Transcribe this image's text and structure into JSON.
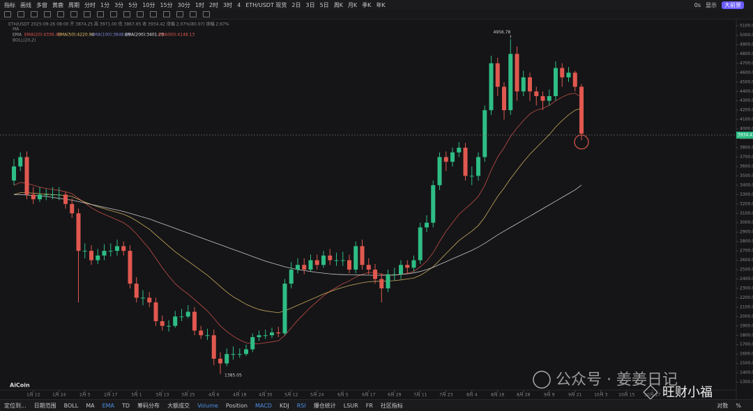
{
  "toolbar": {
    "items": [
      "指标",
      "画线",
      "多窗",
      "黄鹿",
      "周期",
      "分时",
      "1分",
      "3分",
      "5分",
      "10分",
      "15分",
      "30分",
      "1时",
      "2时",
      "3时",
      "4",
      "ETH/USDT 现货",
      "2日",
      "3日",
      "5日",
      "周K",
      "月K",
      "季K",
      "年K"
    ],
    "right": [
      "0s",
      "显示"
    ],
    "badge": "大前景"
  },
  "header": {
    "info": "ETH/USDT  2025-09-26 08:00  开 3874.25  高 3971.00  低 3867.65  收 3934.42  涨幅 2.07%(80.07)  振幅 2.67%",
    "ma": "MA",
    "ema_title": "EMA",
    "ema": [
      {
        "text": "EMA(20):4336.43",
        "color": "#e0584f"
      },
      {
        "text": "EMA(50):4220.94",
        "color": "#e8c46a"
      },
      {
        "text": "EMA(100):3848.43",
        "color": "#7b86d6"
      },
      {
        "text": "EMA(200):3401.23",
        "color": "#e6e6e6"
      },
      {
        "text": "EMA(60):4148.13",
        "color": "#e0584f"
      }
    ],
    "boll": "BOLL(20,2)"
  },
  "watermark": {
    "brand": "AiCoin",
    "account": "公众号 · 姜姜日记",
    "author": "旺财小福"
  },
  "bottom": {
    "items": [
      {
        "text": "定位到...",
        "active": false
      },
      {
        "text": "日期范围",
        "active": false
      },
      {
        "text": "BOLL",
        "active": false
      },
      {
        "text": "MA",
        "active": false
      },
      {
        "text": "EMA",
        "active": true
      },
      {
        "text": "TD",
        "active": false
      },
      {
        "text": "筹码分布",
        "active": false
      },
      {
        "text": "大额成交",
        "active": false
      },
      {
        "text": "Volume",
        "active": true
      },
      {
        "text": "Position",
        "active": false
      },
      {
        "text": "MACD",
        "active": true
      },
      {
        "text": "KDJ",
        "active": false
      },
      {
        "text": "RSI",
        "active": true
      },
      {
        "text": "爆仓统计",
        "active": false
      },
      {
        "text": "LSUR",
        "active": false
      },
      {
        "text": "FR",
        "active": false
      },
      {
        "text": "社区指标",
        "active": false
      }
    ],
    "right": [
      "对数",
      "%"
    ]
  },
  "chart_data": {
    "type": "candlestick",
    "up_color": "#2ebd85",
    "down_color": "#e0584f",
    "categories": [
      null,
      null,
      null,
      "1月 12",
      null,
      null,
      null,
      "1月 24",
      null,
      null,
      null,
      "2月 5",
      null,
      null,
      null,
      "2月 17",
      null,
      null,
      null,
      "3月 1",
      null,
      null,
      null,
      "3月 13",
      null,
      null,
      null,
      "3月 25",
      null,
      null,
      null,
      "4月 6",
      null,
      null,
      null,
      "4月 18",
      null,
      null,
      null,
      "4月 30",
      null,
      null,
      null,
      "5月 12",
      null,
      null,
      null,
      "5月 24",
      null,
      null,
      null,
      "6月 5",
      null,
      null,
      null,
      "6月 17",
      null,
      null,
      null,
      "6月 29",
      null,
      null,
      null,
      "7月 11",
      null,
      null,
      null,
      "7月 23",
      null,
      null,
      null,
      "8月 4",
      null,
      null,
      null,
      "8月 16",
      null,
      null,
      null,
      "8月 28",
      null,
      null,
      null,
      "9月 9",
      null,
      null,
      null,
      "9月 21",
      null,
      null,
      null,
      "10月 3",
      null,
      null,
      null,
      "10月 15",
      null,
      null,
      null,
      "10月 27"
    ],
    "open": [
      3450,
      3600,
      3700,
      3300,
      3250,
      3300,
      3300,
      3300,
      3300,
      3200,
      3100,
      2700,
      2700,
      2600,
      2650,
      2700,
      2700,
      2750,
      2700,
      2350,
      2200,
      2200,
      2150,
      1950,
      1900,
      1900,
      2000,
      2000,
      2050,
      1850,
      1800,
      1800,
      1550,
      1500,
      1600,
      1600,
      1600,
      1650,
      1780,
      1800,
      1800,
      1830,
      1820,
      2350,
      2500,
      2550,
      2500,
      2600,
      2550,
      2650,
      2600,
      2600,
      2600,
      2500,
      2750,
      2550,
      2500,
      2400,
      2300,
      2450,
      2450,
      2550,
      2520,
      2600,
      2950,
      3000,
      3400,
      3700,
      3650,
      3750,
      3800,
      3500,
      3500,
      3700,
      4200,
      4700,
      4450,
      4200,
      4800,
      4400,
      4550,
      4400,
      4350,
      4300,
      4350,
      4650,
      4550,
      4600,
      4450,
      null,
      null,
      null,
      null,
      null,
      null,
      null,
      null,
      null,
      null,
      null
    ],
    "high": [
      3680,
      3750,
      3760,
      3380,
      3380,
      3360,
      3380,
      3380,
      3330,
      3260,
      3150,
      2780,
      2760,
      2720,
      2770,
      2780,
      2820,
      2800,
      2760,
      2420,
      2280,
      2260,
      2200,
      2010,
      1960,
      2060,
      2080,
      2120,
      2100,
      1900,
      1870,
      1860,
      1620,
      1660,
      1680,
      1660,
      1700,
      1820,
      1850,
      1860,
      1880,
      1890,
      2400,
      2580,
      2620,
      2620,
      2660,
      2660,
      2700,
      2720,
      2680,
      2690,
      2660,
      2800,
      2820,
      2620,
      2560,
      2460,
      2500,
      2520,
      2600,
      2600,
      2650,
      3000,
      3080,
      3450,
      3750,
      3760,
      3800,
      3860,
      3850,
      3600,
      3750,
      4250,
      4780,
      4760,
      4500,
      4956.78,
      4880,
      4620,
      4600,
      4450,
      4400,
      4420,
      4720,
      4700,
      4660,
      4620,
      4480,
      null,
      null,
      null,
      null,
      null,
      null,
      null,
      null,
      null,
      null,
      null
    ],
    "low": [
      3400,
      3550,
      3250,
      3200,
      3220,
      3240,
      3250,
      3240,
      3150,
      3050,
      2150,
      2620,
      2550,
      2560,
      2600,
      2640,
      2650,
      2650,
      2300,
      2150,
      2120,
      2100,
      1900,
      1850,
      1840,
      1880,
      1950,
      1980,
      1800,
      1760,
      1750,
      1480,
      1385.05,
      1470,
      1540,
      1560,
      1580,
      1620,
      1740,
      1760,
      1770,
      1780,
      1800,
      2300,
      2460,
      2450,
      2480,
      2500,
      2520,
      2550,
      2540,
      2540,
      2460,
      2460,
      2500,
      2450,
      2350,
      2150,
      2260,
      2380,
      2400,
      2460,
      2480,
      2560,
      2900,
      2950,
      3350,
      3550,
      3600,
      3700,
      3450,
      3400,
      3450,
      3650,
      4150,
      4350,
      4100,
      4150,
      4300,
      4350,
      4300,
      4250,
      4200,
      4250,
      4300,
      4450,
      4500,
      4400,
      3880,
      null,
      null,
      null,
      null,
      null,
      null,
      null,
      null,
      null,
      null,
      null
    ],
    "close": [
      3600,
      3700,
      3300,
      3250,
      3300,
      3300,
      3300,
      3300,
      3200,
      3100,
      2700,
      2700,
      2600,
      2650,
      2700,
      2700,
      2750,
      2700,
      2350,
      2200,
      2200,
      2150,
      1950,
      1900,
      1900,
      2000,
      2000,
      2050,
      1850,
      1800,
      1800,
      1550,
      1500,
      1600,
      1600,
      1600,
      1650,
      1780,
      1800,
      1800,
      1830,
      1820,
      2350,
      2500,
      2550,
      2500,
      2600,
      2550,
      2650,
      2600,
      2600,
      2600,
      2500,
      2750,
      2550,
      2500,
      2400,
      2300,
      2450,
      2450,
      2550,
      2520,
      2600,
      2950,
      3000,
      3400,
      3700,
      3650,
      3750,
      3800,
      3500,
      3500,
      3700,
      4200,
      4700,
      4450,
      4200,
      4800,
      4400,
      4550,
      4400,
      4350,
      4300,
      4350,
      4650,
      4550,
      4600,
      4450,
      3950,
      null,
      null,
      null,
      null,
      null,
      null,
      null,
      null,
      null,
      null,
      null
    ],
    "series": [
      {
        "color": "#e0584f",
        "values": [
          3400,
          3430,
          3420,
          3400,
          3380,
          3365,
          3355,
          3345,
          3330,
          3310,
          3260,
          3210,
          3160,
          3120,
          3090,
          3060,
          3030,
          3000,
          2950,
          2880,
          2800,
          2720,
          2620,
          2520,
          2430,
          2350,
          2290,
          2240,
          2180,
          2120,
          2060,
          1980,
          1900,
          1840,
          1790,
          1750,
          1720,
          1710,
          1710,
          1720,
          1730,
          1740,
          1800,
          1880,
          1960,
          2030,
          2100,
          2160,
          2220,
          2270,
          2310,
          2350,
          2380,
          2420,
          2450,
          2470,
          2470,
          2450,
          2440,
          2440,
          2450,
          2460,
          2480,
          2530,
          2590,
          2680,
          2800,
          2910,
          3000,
          3090,
          3150,
          3210,
          3280,
          3400,
          3560,
          3700,
          3800,
          3920,
          4010,
          4090,
          4160,
          4200,
          4220,
          4250,
          4300,
          4340,
          4370,
          4380,
          4336.43,
          null,
          null,
          null,
          null,
          null,
          null,
          null,
          null,
          null,
          null,
          null
        ]
      },
      {
        "color": "#e8c46a",
        "values": [
          3300,
          3320,
          3320,
          3315,
          3310,
          3305,
          3300,
          3295,
          3290,
          3280,
          3250,
          3220,
          3195,
          3170,
          3150,
          3130,
          3110,
          3090,
          3060,
          3020,
          2975,
          2930,
          2870,
          2810,
          2750,
          2690,
          2640,
          2590,
          2540,
          2490,
          2440,
          2380,
          2320,
          2260,
          2210,
          2170,
          2130,
          2100,
          2075,
          2060,
          2050,
          2040,
          2060,
          2090,
          2120,
          2150,
          2180,
          2210,
          2240,
          2265,
          2290,
          2310,
          2330,
          2345,
          2360,
          2370,
          2375,
          2375,
          2378,
          2382,
          2390,
          2400,
          2410,
          2440,
          2480,
          2530,
          2600,
          2670,
          2740,
          2810,
          2860,
          2910,
          2970,
          3060,
          3170,
          3280,
          3370,
          3470,
          3560,
          3650,
          3730,
          3800,
          3870,
          3940,
          4020,
          4090,
          4150,
          4200,
          4220.94,
          null,
          null,
          null,
          null,
          null,
          null,
          null,
          null,
          null,
          null,
          null
        ]
      },
      {
        "color": "#e6e6e6",
        "values": [
          3300,
          3300,
          3295,
          3290,
          3285,
          3280,
          3270,
          3260,
          3250,
          3240,
          3225,
          3210,
          3195,
          3180,
          3165,
          3150,
          3135,
          3120,
          3100,
          3080,
          3060,
          3040,
          3015,
          2990,
          2965,
          2940,
          2915,
          2890,
          2865,
          2840,
          2815,
          2790,
          2765,
          2740,
          2715,
          2690,
          2665,
          2640,
          2615,
          2590,
          2570,
          2550,
          2530,
          2515,
          2500,
          2490,
          2480,
          2470,
          2462,
          2455,
          2450,
          2447,
          2445,
          2443,
          2442,
          2441,
          2440,
          2440,
          2441,
          2443,
          2448,
          2455,
          2465,
          2480,
          2500,
          2525,
          2555,
          2585,
          2615,
          2645,
          2675,
          2705,
          2740,
          2780,
          2825,
          2870,
          2910,
          2950,
          2990,
          3030,
          3070,
          3110,
          3150,
          3190,
          3230,
          3270,
          3310,
          3350,
          3401.23,
          null,
          null,
          null,
          null,
          null,
          null,
          null,
          null,
          null,
          null,
          null
        ]
      }
    ],
    "current_price": 3934.42,
    "current_color": "#2ebd85",
    "ylim": [
      1215,
      5167
    ],
    "yticks": [
      {
        "value": 5100,
        "label": "5100.00"
      },
      {
        "value": 5000,
        "label": "5000.00"
      },
      {
        "value": 4900,
        "label": "4900.00"
      },
      {
        "value": 4800,
        "label": "4800.00"
      },
      {
        "value": 4700,
        "label": "4700.00"
      },
      {
        "value": 4600,
        "label": "4600.00"
      },
      {
        "value": 4500,
        "label": "4500.00"
      },
      {
        "value": 4400,
        "label": "4400.00"
      },
      {
        "value": 4300,
        "label": "4300.00"
      },
      {
        "value": 4200,
        "label": "4200.00"
      },
      {
        "value": 4100,
        "label": "4100.00"
      },
      {
        "value": 4000,
        "label": "4000.00"
      },
      {
        "value": 3900,
        "label": "3900.00"
      },
      {
        "value": 3800,
        "label": "3800.00"
      },
      {
        "value": 3700,
        "label": "3700.00"
      },
      {
        "value": 3600,
        "label": "3600.00"
      },
      {
        "value": 3500,
        "label": "3500.00"
      },
      {
        "value": 3400,
        "label": "3400.00"
      },
      {
        "value": 3300,
        "label": "3300.00"
      },
      {
        "value": 3200,
        "label": "3200.00"
      },
      {
        "value": 3100,
        "label": "3100.00"
      },
      {
        "value": 3000,
        "label": "3000.00"
      },
      {
        "value": 2900,
        "label": "2900.00"
      },
      {
        "value": 2800,
        "label": "2800.00"
      },
      {
        "value": 2700,
        "label": "2700.00"
      },
      {
        "value": 2600,
        "label": "2600.00"
      },
      {
        "value": 2500,
        "label": "2500.00"
      },
      {
        "value": 2400,
        "label": "2400.00"
      },
      {
        "value": 2300,
        "label": "2300.00"
      },
      {
        "value": 2200,
        "label": "2200.00"
      },
      {
        "value": 2100,
        "label": "2100.00"
      },
      {
        "value": 2000,
        "label": "2000.00"
      },
      {
        "value": 1900,
        "label": "1900.00"
      },
      {
        "value": 1800,
        "label": "1800.00"
      },
      {
        "value": 1700,
        "label": "1700.00"
      },
      {
        "value": 1600,
        "label": "1600.00"
      },
      {
        "value": 1500,
        "label": "1500.00"
      },
      {
        "value": 1400,
        "label": "1400.00"
      },
      {
        "value": 1300,
        "label": "1300.00"
      }
    ],
    "grid": false
  }
}
